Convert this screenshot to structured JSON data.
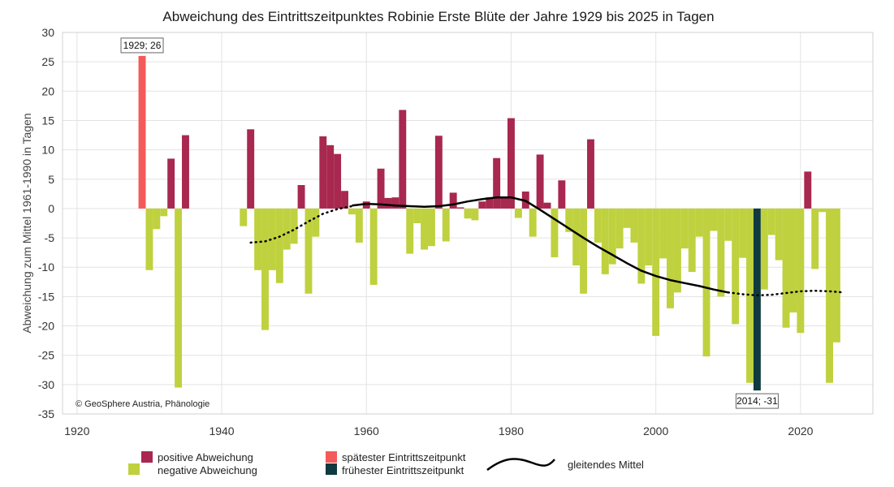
{
  "chart_data": {
    "type": "bar",
    "title": "Abweichung des Eintrittszeitpunktes Robinie Erste Blüte der Jahre 1929 bis 2025 in Tagen",
    "xlabel": "",
    "ylabel": "Abweichung zum Mittel 1961-1990 in Tagen",
    "xlim": [
      1918,
      2030
    ],
    "ylim": [
      -35,
      30
    ],
    "x_ticks": [
      1920,
      1940,
      1960,
      1980,
      2000,
      2020
    ],
    "y_ticks": [
      30,
      25,
      20,
      15,
      10,
      5,
      0,
      -5,
      -10,
      -15,
      -20,
      -25,
      -30,
      -35
    ],
    "grid": true,
    "copyright": "© GeoSphere Austria, Phänologie",
    "colors": {
      "positive": "#a8284f",
      "negative": "#bfd13e",
      "latest": "#f45a5a",
      "earliest": "#0f3a40",
      "smooth": "#000000"
    },
    "bars": [
      {
        "year": 1929,
        "value": 26
      },
      {
        "year": 1930,
        "value": -10.5
      },
      {
        "year": 1931,
        "value": -3.5
      },
      {
        "year": 1932,
        "value": -1.3
      },
      {
        "year": 1933,
        "value": 8.5
      },
      {
        "year": 1934,
        "value": -30.5
      },
      {
        "year": 1935,
        "value": 12.5
      },
      {
        "year": 1943,
        "value": -3
      },
      {
        "year": 1944,
        "value": 13.5
      },
      {
        "year": 1945,
        "value": -10.5
      },
      {
        "year": 1946,
        "value": -20.7
      },
      {
        "year": 1947,
        "value": -10.5
      },
      {
        "year": 1948,
        "value": -12.7
      },
      {
        "year": 1949,
        "value": -7
      },
      {
        "year": 1950,
        "value": -6
      },
      {
        "year": 1951,
        "value": 4
      },
      {
        "year": 1952,
        "value": -14.5
      },
      {
        "year": 1953,
        "value": -4.8
      },
      {
        "year": 1954,
        "value": 12.3
      },
      {
        "year": 1955,
        "value": 10.8
      },
      {
        "year": 1956,
        "value": 9.3
      },
      {
        "year": 1957,
        "value": 3
      },
      {
        "year": 1958,
        "value": -1
      },
      {
        "year": 1959,
        "value": -5.8
      },
      {
        "year": 1960,
        "value": 1.2
      },
      {
        "year": 1961,
        "value": -13
      },
      {
        "year": 1962,
        "value": 6.8
      },
      {
        "year": 1963,
        "value": 1.8
      },
      {
        "year": 1964,
        "value": 1.9
      },
      {
        "year": 1965,
        "value": 16.8
      },
      {
        "year": 1966,
        "value": -7.7
      },
      {
        "year": 1967,
        "value": -2.5
      },
      {
        "year": 1968,
        "value": -7
      },
      {
        "year": 1969,
        "value": -6.4
      },
      {
        "year": 1970,
        "value": 12.4
      },
      {
        "year": 1971,
        "value": -5.6
      },
      {
        "year": 1972,
        "value": 2.7
      },
      {
        "year": 1973,
        "value": 0.2
      },
      {
        "year": 1974,
        "value": -1.7
      },
      {
        "year": 1975,
        "value": -2
      },
      {
        "year": 1976,
        "value": 1.2
      },
      {
        "year": 1977,
        "value": 1.9
      },
      {
        "year": 1978,
        "value": 8.6
      },
      {
        "year": 1979,
        "value": 1.8
      },
      {
        "year": 1980,
        "value": 15.4
      },
      {
        "year": 1981,
        "value": -1.6
      },
      {
        "year": 1982,
        "value": 2.9
      },
      {
        "year": 1983,
        "value": -4.8
      },
      {
        "year": 1984,
        "value": 9.2
      },
      {
        "year": 1985,
        "value": 1
      },
      {
        "year": 1986,
        "value": -8.3
      },
      {
        "year": 1987,
        "value": 4.8
      },
      {
        "year": 1988,
        "value": -4
      },
      {
        "year": 1989,
        "value": -9.7
      },
      {
        "year": 1990,
        "value": -14.5
      },
      {
        "year": 1991,
        "value": 11.8
      },
      {
        "year": 1992,
        "value": -5.8
      },
      {
        "year": 1993,
        "value": -11.2
      },
      {
        "year": 1994,
        "value": -9.5
      },
      {
        "year": 1995,
        "value": -6.8
      },
      {
        "year": 1996,
        "value": -3.3
      },
      {
        "year": 1997,
        "value": -5.8
      },
      {
        "year": 1998,
        "value": -12.8
      },
      {
        "year": 1999,
        "value": -9.7
      },
      {
        "year": 2000,
        "value": -21.7
      },
      {
        "year": 2001,
        "value": -8.5
      },
      {
        "year": 2002,
        "value": -17
      },
      {
        "year": 2003,
        "value": -14.3
      },
      {
        "year": 2004,
        "value": -6.8
      },
      {
        "year": 2005,
        "value": -10.8
      },
      {
        "year": 2006,
        "value": -4.8
      },
      {
        "year": 2007,
        "value": -25.2
      },
      {
        "year": 2008,
        "value": -3.8
      },
      {
        "year": 2009,
        "value": -15
      },
      {
        "year": 2010,
        "value": -5.5
      },
      {
        "year": 2011,
        "value": -19.7
      },
      {
        "year": 2012,
        "value": -8.4
      },
      {
        "year": 2013,
        "value": -29.7
      },
      {
        "year": 2014,
        "value": -31
      },
      {
        "year": 2015,
        "value": -13.8
      },
      {
        "year": 2016,
        "value": -4.5
      },
      {
        "year": 2017,
        "value": -8.8
      },
      {
        "year": 2018,
        "value": -20.3
      },
      {
        "year": 2019,
        "value": -17.7
      },
      {
        "year": 2020,
        "value": -21.2
      },
      {
        "year": 2021,
        "value": 6.3
      },
      {
        "year": 2022,
        "value": -10.3
      },
      {
        "year": 2023,
        "value": -0.6
      },
      {
        "year": 2024,
        "value": -29.7
      },
      {
        "year": 2025,
        "value": -22.8
      }
    ],
    "latest": {
      "year": 1929,
      "value": 26,
      "label": "1929; 26"
    },
    "earliest": {
      "year": 2014,
      "value": -31,
      "label": "2014; -31"
    },
    "smooth_series": {
      "name": "gleitendes Mittel",
      "dotted_start": [
        [
          1944,
          -5.8
        ],
        [
          1946,
          -5.6
        ],
        [
          1948,
          -4.8
        ],
        [
          1950,
          -3.6
        ],
        [
          1952,
          -2.2
        ],
        [
          1954,
          -0.9
        ],
        [
          1956,
          -0.1
        ],
        [
          1958,
          0.4
        ]
      ],
      "solid": [
        [
          1958,
          0.5
        ],
        [
          1960,
          0.8
        ],
        [
          1962,
          0.7
        ],
        [
          1964,
          0.5
        ],
        [
          1966,
          0.4
        ],
        [
          1968,
          0.3
        ],
        [
          1970,
          0.4
        ],
        [
          1972,
          0.7
        ],
        [
          1974,
          1.2
        ],
        [
          1976,
          1.6
        ],
        [
          1978,
          1.9
        ],
        [
          1980,
          1.9
        ],
        [
          1982,
          1.3
        ],
        [
          1984,
          -0.2
        ],
        [
          1986,
          -1.8
        ],
        [
          1988,
          -3.4
        ],
        [
          1990,
          -5
        ],
        [
          1992,
          -6.5
        ],
        [
          1994,
          -7.9
        ],
        [
          1996,
          -9.3
        ],
        [
          1998,
          -10.6
        ],
        [
          2000,
          -11.5
        ],
        [
          2002,
          -12.2
        ],
        [
          2004,
          -12.7
        ],
        [
          2006,
          -13.2
        ],
        [
          2008,
          -13.8
        ],
        [
          2010,
          -14.3
        ]
      ],
      "dotted_end": [
        [
          2010,
          -14.3
        ],
        [
          2012,
          -14.6
        ],
        [
          2014,
          -14.8
        ],
        [
          2016,
          -14.7
        ],
        [
          2018,
          -14.4
        ],
        [
          2020,
          -14.1
        ],
        [
          2022,
          -14
        ],
        [
          2024,
          -14.1
        ],
        [
          2026,
          -14.3
        ]
      ]
    },
    "legend": {
      "positive": "positive Abweichung",
      "negative": "negative Abweichung",
      "latest": "spätester Eintrittszeitpunkt",
      "earliest": "frühester Eintrittszeitpunkt",
      "smooth": "gleitendes Mittel"
    }
  }
}
